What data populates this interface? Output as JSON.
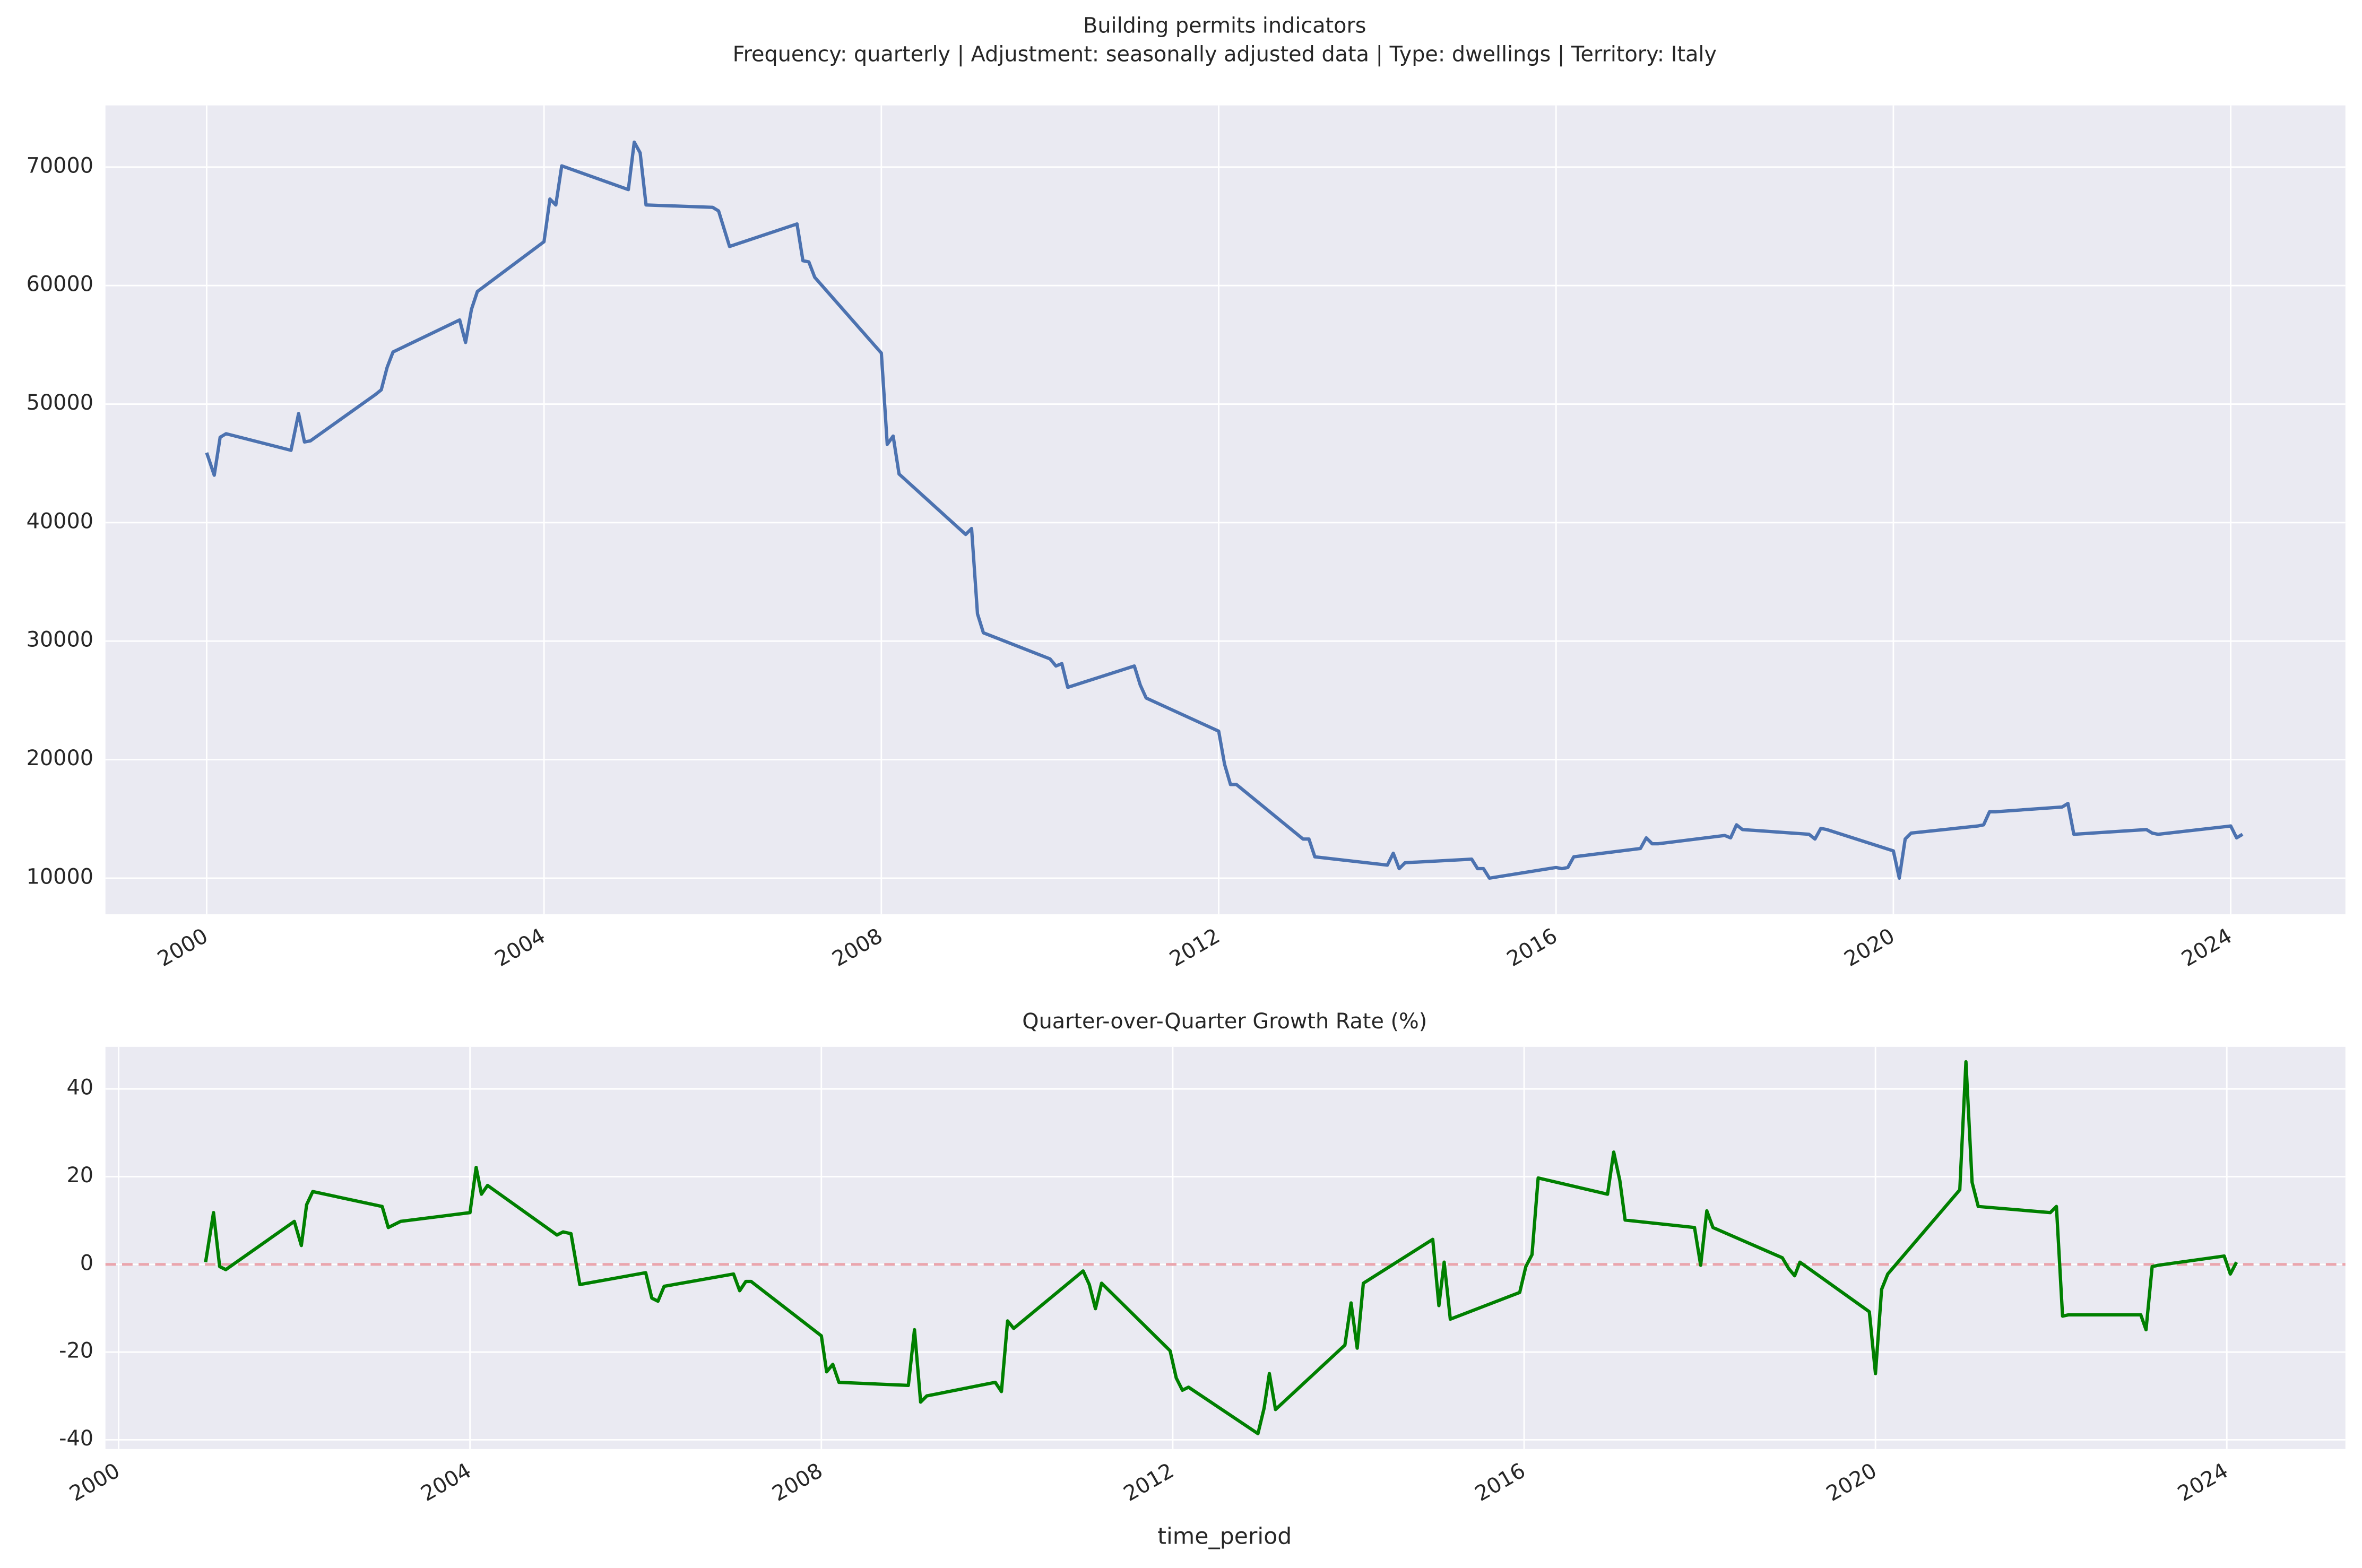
{
  "chart_data": [
    {
      "type": "line",
      "title": "Building permits  indicators",
      "subtitle": "Frequency: quarterly | Adjustment: seasonally adjusted data | Type: dwellings | Territory: Italy",
      "color": "#4c72b0",
      "grid": true,
      "x": [
        2000.0,
        2000.09,
        2000.16,
        2000.23,
        2001.0,
        2001.09,
        2001.16,
        2001.23,
        2002.0,
        2002.07,
        2002.14,
        2002.21,
        2003.0,
        2003.07,
        2003.14,
        2003.21,
        2004.0,
        2004.07,
        2004.14,
        2004.21,
        2005.0,
        2005.07,
        2005.14,
        2005.21,
        2006.0,
        2006.07,
        2006.2,
        2007.0,
        2007.07,
        2007.14,
        2007.21,
        2008.0,
        2008.07,
        2008.14,
        2008.21,
        2009.0,
        2009.07,
        2009.14,
        2009.21,
        2010.0,
        2010.07,
        2010.14,
        2010.21,
        2011.0,
        2011.07,
        2011.14,
        2012.0,
        2012.07,
        2012.14,
        2012.21,
        2013.0,
        2013.07,
        2013.14,
        2014.0,
        2014.07,
        2014.14,
        2014.21,
        2015.0,
        2015.07,
        2015.14,
        2015.21,
        2016.0,
        2016.07,
        2016.14,
        2016.21,
        2017.0,
        2017.07,
        2017.14,
        2017.21,
        2018.0,
        2018.07,
        2018.14,
        2018.21,
        2019.0,
        2019.07,
        2019.14,
        2019.21,
        2020.0,
        2020.07,
        2020.14,
        2020.21,
        2021.0,
        2021.07,
        2021.14,
        2021.21,
        2022.0,
        2022.07,
        2022.14,
        2023.0,
        2023.07,
        2023.14,
        2024.0,
        2024.07,
        2024.14
      ],
      "values": [
        45900,
        44000,
        47200,
        47500,
        46100,
        49200,
        46800,
        46900,
        50800,
        51200,
        53100,
        54400,
        57100,
        55200,
        58000,
        59500,
        63700,
        67300,
        66800,
        70100,
        68100,
        72100,
        71200,
        66800,
        66600,
        66300,
        63300,
        65200,
        62100,
        62000,
        60700,
        54300,
        46600,
        47300,
        44100,
        39000,
        39500,
        32300,
        30700,
        28500,
        27900,
        28100,
        26100,
        27900,
        26300,
        25200,
        22400,
        19600,
        17900,
        17900,
        13300,
        13300,
        11800,
        11100,
        12100,
        10800,
        11300,
        11600,
        10800,
        10800,
        10000,
        10900,
        10800,
        10900,
        11800,
        12500,
        13400,
        12900,
        12900,
        13600,
        13400,
        14500,
        14100,
        13700,
        13300,
        14200,
        14100,
        12300,
        10000,
        13300,
        13800,
        14400,
        14500,
        15600,
        15600,
        16000,
        16300,
        13700,
        14100,
        13800,
        13700,
        14400,
        13400,
        13700
      ],
      "xlim": [
        1998.8,
        2025.36
      ],
      "xticks": [
        2000,
        2004,
        2008,
        2012,
        2016,
        2020,
        2024
      ],
      "ylim": [
        6950,
        75200
      ],
      "yticks": [
        10000,
        20000,
        30000,
        40000,
        50000,
        60000,
        70000
      ]
    },
    {
      "type": "line",
      "title": "Quarter-over-Quarter Growth Rate (%)",
      "xlabel": "time_period",
      "color": "#008000",
      "grid": true,
      "hline": 0,
      "hline_color": "#eaa5ad",
      "x": [
        2000.99,
        2001.08,
        2001.15,
        2001.22,
        2002.0,
        2002.08,
        2002.14,
        2002.21,
        2003.0,
        2003.07,
        2003.14,
        2003.21,
        2004.0,
        2004.07,
        2004.13,
        2004.2,
        2004.99,
        2005.06,
        2005.15,
        2005.25,
        2006.0,
        2006.07,
        2006.14,
        2006.21,
        2007.0,
        2007.07,
        2007.14,
        2007.2,
        2008.0,
        2008.06,
        2008.13,
        2008.2,
        2008.99,
        2009.06,
        2009.13,
        2009.2,
        2009.98,
        2010.05,
        2010.12,
        2010.19,
        2010.98,
        2011.05,
        2011.12,
        2011.19,
        2011.97,
        2012.04,
        2012.11,
        2012.18,
        2012.97,
        2013.04,
        2013.1,
        2013.17,
        2013.96,
        2014.03,
        2014.1,
        2014.17,
        2014.96,
        2015.03,
        2015.09,
        2015.16,
        2015.95,
        2016.02,
        2016.09,
        2016.16,
        2016.95,
        2017.02,
        2017.09,
        2017.15,
        2017.94,
        2018.01,
        2018.08,
        2018.15,
        2018.94,
        2019.01,
        2019.08,
        2019.14,
        2019.93,
        2020.0,
        2020.07,
        2020.14,
        2020.96,
        2021.03,
        2021.1,
        2021.17,
        2021.99,
        2022.06,
        2022.13,
        2022.2,
        2023.02,
        2023.08,
        2023.15,
        2023.22,
        2023.97,
        2024.04,
        2024.11
      ],
      "values": [
        0.5,
        11.8,
        -0.5,
        -1.2,
        9.8,
        4.3,
        13.6,
        16.6,
        13.2,
        8.4,
        9.1,
        9.8,
        11.8,
        22.1,
        16.0,
        18.0,
        6.7,
        7.4,
        7.0,
        -4.6,
        -1.9,
        -7.7,
        -8.4,
        -5.0,
        -2.2,
        -6.0,
        -3.9,
        -3.9,
        -16.3,
        -24.5,
        -22.8,
        -26.9,
        -27.6,
        -14.9,
        -31.4,
        -30.0,
        -26.9,
        -29.0,
        -12.9,
        -14.6,
        -1.5,
        -4.6,
        -10.1,
        -4.3,
        -19.7,
        -25.9,
        -28.7,
        -28.0,
        -38.6,
        -32.8,
        -24.9,
        -33.1,
        -18.4,
        -8.8,
        -19.1,
        -4.3,
        5.7,
        -9.4,
        0.5,
        -12.5,
        -6.4,
        -0.5,
        2.2,
        19.7,
        16.0,
        25.6,
        19.1,
        10.1,
        8.4,
        -0.2,
        12.2,
        8.4,
        1.5,
        -0.9,
        -2.6,
        0.5,
        -10.8,
        -24.9,
        -5.7,
        -2.2,
        17.0,
        46.2,
        18.7,
        13.2,
        11.8,
        13.2,
        -11.8,
        -11.5,
        -11.5,
        -14.9,
        -0.5,
        -0.2,
        1.9,
        -2.2,
        0.5
      ],
      "xlim": [
        1999.85,
        2025.35
      ],
      "xticks": [
        2000,
        2004,
        2008,
        2012,
        2016,
        2020,
        2024
      ],
      "ylim": [
        -42.1,
        49.6
      ],
      "yticks": [
        -40,
        -20,
        0,
        20,
        40
      ]
    }
  ]
}
